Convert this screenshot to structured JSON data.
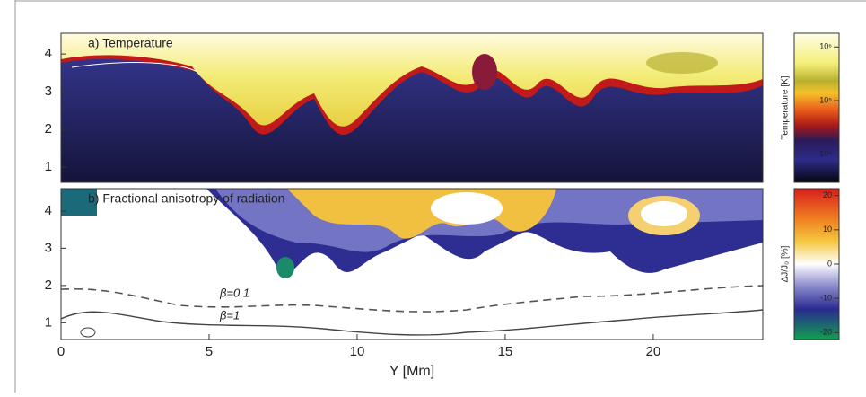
{
  "figure": {
    "x_axis": {
      "label": "Y [Mm]",
      "lim": [
        0,
        23.7
      ],
      "ticks": [
        0,
        5,
        10,
        15,
        20
      ]
    },
    "panels": [
      {
        "title": "a) Temperature",
        "ylim": [
          0.6,
          4.55
        ],
        "yticks": [
          1,
          2,
          3,
          4
        ],
        "colorbar": {
          "label": "Temperature [K]",
          "log": true,
          "lim": [
            3000,
            1800000
          ],
          "ticks": [
            {
              "value": 1000000,
              "label": "10⁶"
            },
            {
              "value": 100000,
              "label": "10⁵"
            },
            {
              "value": 10000,
              "label": "10⁴"
            }
          ]
        }
      },
      {
        "title": "b) Fractional anisotropy of radiation",
        "ylim": [
          0.55,
          4.6
        ],
        "yticks": [
          1,
          2,
          3,
          4
        ],
        "colorbar": {
          "label": "ΔJ/J₀ [%]",
          "log": false,
          "lim": [
            -22,
            22
          ],
          "ticks": [
            20,
            10,
            0,
            -10,
            -20
          ]
        },
        "annotations": [
          "β=0.1",
          "β=1"
        ]
      }
    ]
  }
}
